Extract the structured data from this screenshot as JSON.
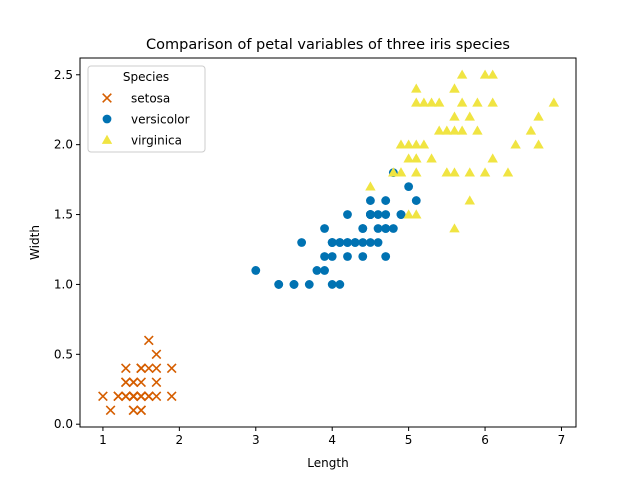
{
  "chart_data": {
    "type": "scatter",
    "title": "Comparison of petal variables of three iris species",
    "xlabel": "Length",
    "ylabel": "Width",
    "xlim": [
      0.7,
      7.19
    ],
    "ylim": [
      -0.02,
      2.62
    ],
    "xticks": [
      1,
      2,
      3,
      4,
      5,
      6,
      7
    ],
    "xtick_labels": [
      "1",
      "2",
      "3",
      "4",
      "5",
      "6",
      "7"
    ],
    "yticks": [
      0.0,
      0.5,
      1.0,
      1.5,
      2.0,
      2.5
    ],
    "ytick_labels": [
      "0.0",
      "0.5",
      "1.0",
      "1.5",
      "2.0",
      "2.5"
    ],
    "grid": false,
    "legend": {
      "title": "Species",
      "position": "upper-left"
    },
    "series": [
      {
        "name": "setosa",
        "marker": "x",
        "color": "#d55e00",
        "x": [
          1.4,
          1.4,
          1.3,
          1.5,
          1.4,
          1.7,
          1.4,
          1.5,
          1.4,
          1.5,
          1.5,
          1.6,
          1.4,
          1.1,
          1.2,
          1.5,
          1.3,
          1.4,
          1.7,
          1.5,
          1.7,
          1.5,
          1.0,
          1.7,
          1.9,
          1.6,
          1.6,
          1.5,
          1.4,
          1.6,
          1.6,
          1.5,
          1.5,
          1.4,
          1.5,
          1.2,
          1.3,
          1.4,
          1.3,
          1.5,
          1.3,
          1.3,
          1.3,
          1.6,
          1.9,
          1.4,
          1.6,
          1.4,
          1.5,
          1.4
        ],
        "y": [
          0.2,
          0.2,
          0.2,
          0.2,
          0.2,
          0.4,
          0.3,
          0.2,
          0.2,
          0.1,
          0.2,
          0.2,
          0.1,
          0.1,
          0.2,
          0.4,
          0.4,
          0.3,
          0.3,
          0.3,
          0.2,
          0.4,
          0.2,
          0.5,
          0.2,
          0.2,
          0.4,
          0.2,
          0.2,
          0.2,
          0.2,
          0.4,
          0.1,
          0.2,
          0.2,
          0.2,
          0.2,
          0.1,
          0.2,
          0.2,
          0.3,
          0.3,
          0.2,
          0.6,
          0.4,
          0.3,
          0.2,
          0.2,
          0.2,
          0.2
        ]
      },
      {
        "name": "versicolor",
        "marker": "o",
        "color": "#0072b2",
        "x": [
          4.7,
          4.5,
          4.9,
          4.0,
          4.6,
          4.5,
          4.7,
          3.3,
          4.6,
          3.9,
          3.5,
          4.2,
          4.0,
          4.7,
          3.6,
          4.4,
          4.5,
          4.1,
          4.5,
          3.9,
          4.8,
          4.0,
          4.9,
          4.7,
          4.3,
          4.4,
          4.8,
          5.0,
          4.5,
          3.5,
          3.8,
          3.7,
          3.9,
          5.1,
          4.5,
          4.5,
          4.7,
          4.4,
          4.1,
          4.0,
          4.4,
          4.6,
          4.0,
          3.3,
          4.2,
          4.2,
          4.2,
          4.3,
          3.0,
          4.1
        ],
        "y": [
          1.4,
          1.5,
          1.5,
          1.3,
          1.5,
          1.3,
          1.6,
          1.0,
          1.3,
          1.4,
          1.0,
          1.5,
          1.0,
          1.4,
          1.3,
          1.4,
          1.5,
          1.0,
          1.5,
          1.1,
          1.8,
          1.3,
          1.5,
          1.2,
          1.3,
          1.4,
          1.4,
          1.7,
          1.5,
          1.0,
          1.1,
          1.0,
          1.2,
          1.6,
          1.5,
          1.6,
          1.5,
          1.3,
          1.3,
          1.3,
          1.2,
          1.4,
          1.2,
          1.0,
          1.3,
          1.2,
          1.3,
          1.3,
          1.1,
          1.3
        ]
      },
      {
        "name": "virginica",
        "marker": "^",
        "color": "#f0e442",
        "x": [
          6.0,
          5.1,
          5.9,
          5.6,
          5.8,
          6.6,
          4.5,
          6.3,
          5.8,
          6.1,
          5.1,
          5.3,
          5.5,
          5.0,
          5.1,
          5.3,
          5.5,
          6.7,
          6.9,
          5.0,
          5.7,
          4.9,
          6.7,
          4.9,
          5.7,
          6.0,
          4.8,
          4.9,
          5.6,
          5.8,
          6.1,
          6.4,
          5.6,
          5.1,
          5.6,
          6.1,
          5.6,
          5.5,
          4.8,
          5.4,
          5.6,
          5.1,
          5.1,
          5.9,
          5.7,
          5.2,
          5.0,
          5.2,
          5.4,
          5.1
        ],
        "y": [
          2.5,
          1.9,
          2.1,
          1.8,
          2.2,
          2.1,
          1.7,
          1.8,
          1.8,
          2.5,
          2.0,
          1.9,
          2.1,
          2.0,
          2.4,
          2.3,
          1.8,
          2.2,
          2.3,
          1.5,
          2.3,
          2.0,
          2.0,
          1.8,
          2.1,
          1.8,
          1.8,
          1.8,
          2.1,
          1.6,
          1.9,
          2.0,
          2.2,
          1.5,
          1.4,
          2.3,
          2.4,
          1.8,
          1.8,
          2.1,
          2.4,
          2.3,
          1.9,
          2.3,
          2.5,
          2.3,
          1.9,
          2.0,
          2.3,
          1.8
        ]
      }
    ]
  }
}
